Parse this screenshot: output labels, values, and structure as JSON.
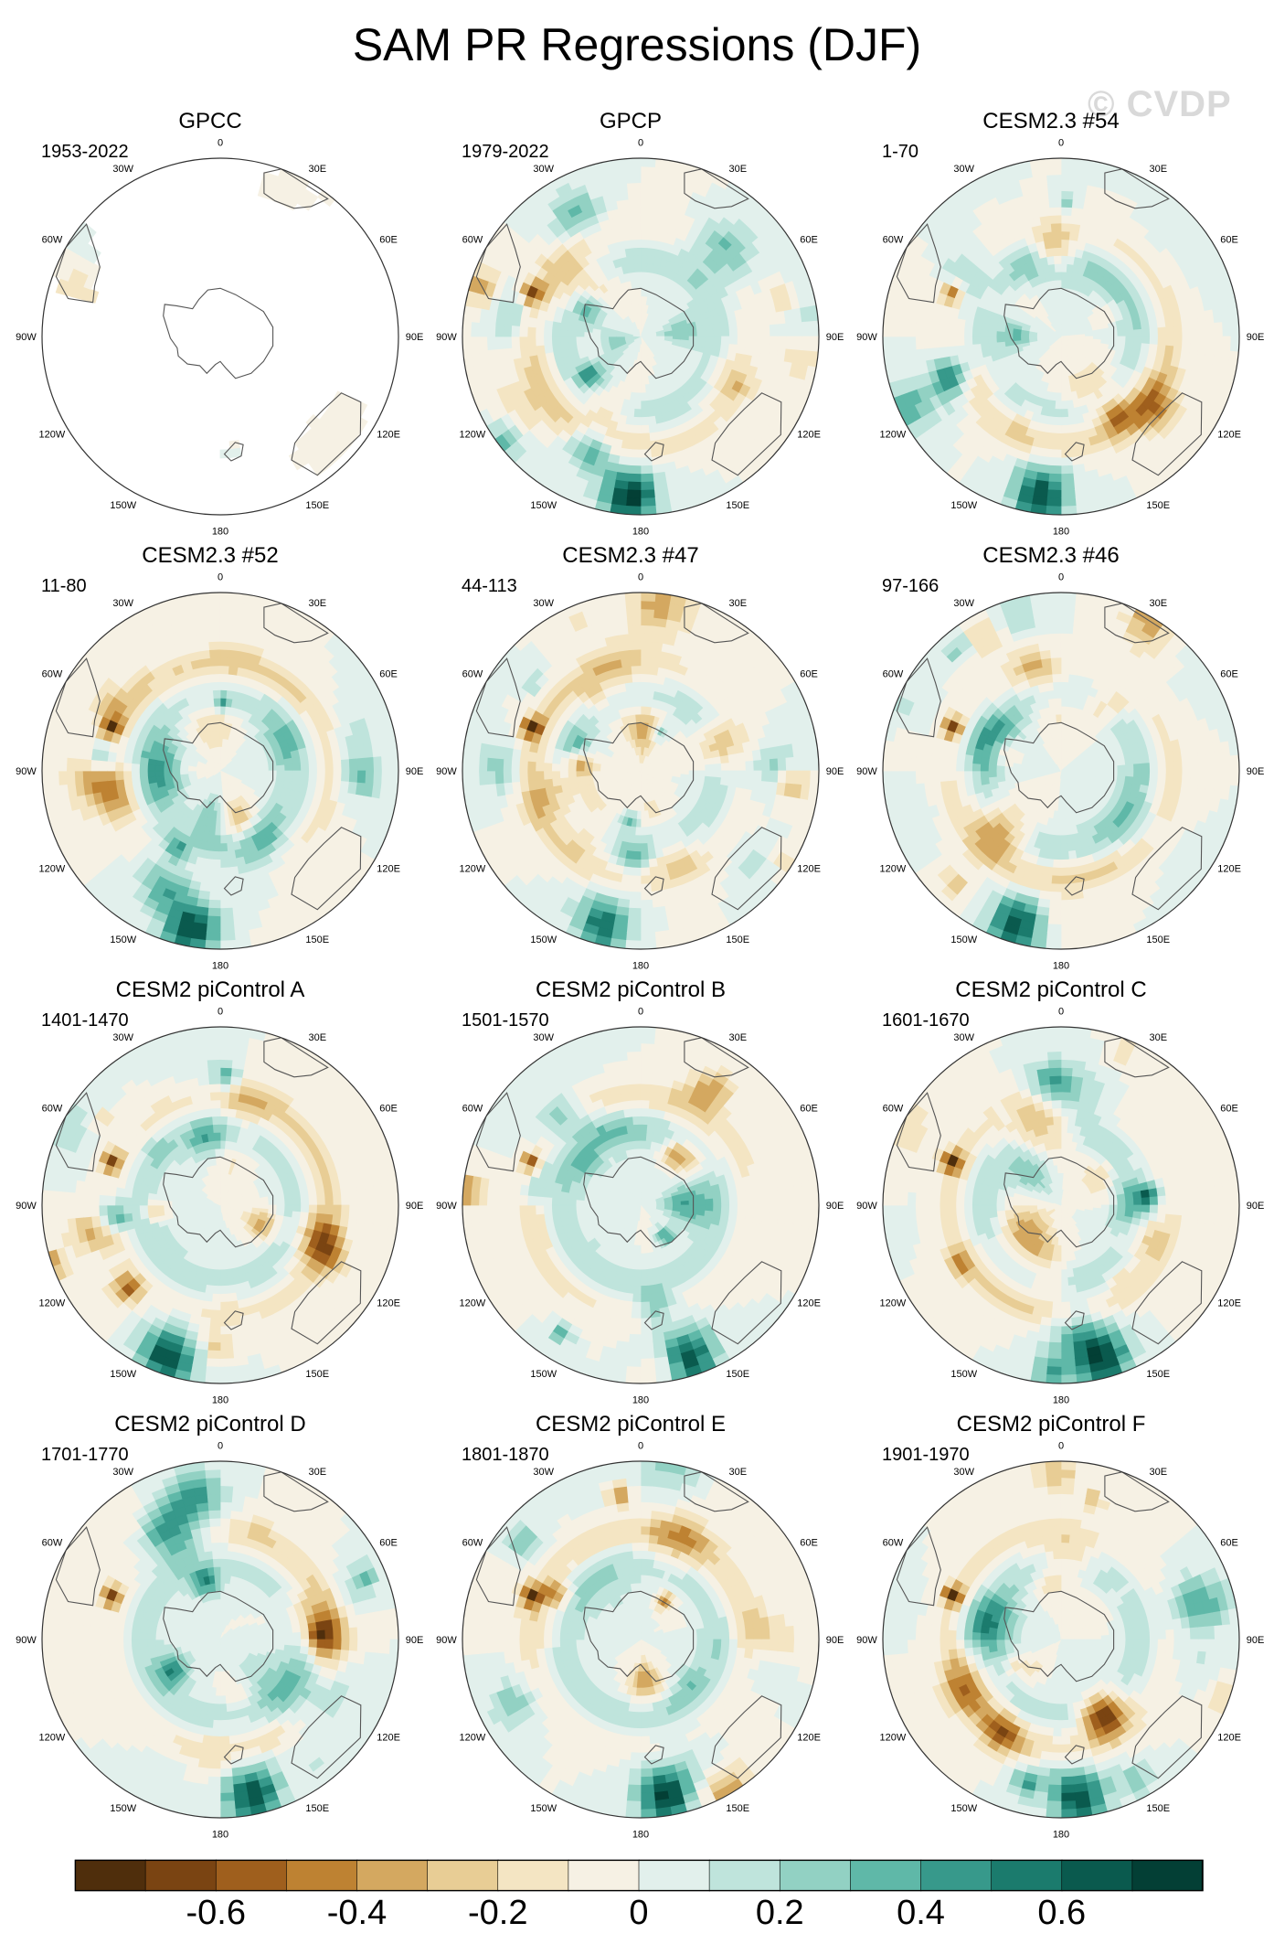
{
  "figure": {
    "title": "SAM PR Regressions (DJF)",
    "watermark": "© CVDP"
  },
  "longitude_labels": [
    "0",
    "30E",
    "60E",
    "90E",
    "120E",
    "150E",
    "180",
    "150W",
    "120W",
    "90W",
    "60W",
    "30W"
  ],
  "panels": [
    {
      "title": "GPCC",
      "period": "1953-2022",
      "data_coverage": "land-only"
    },
    {
      "title": "GPCP",
      "period": "1979-2022",
      "data_coverage": "global"
    },
    {
      "title": "CESM2.3 #54",
      "period": "1-70",
      "data_coverage": "global"
    },
    {
      "title": "CESM2.3 #52",
      "period": "11-80",
      "data_coverage": "global"
    },
    {
      "title": "CESM2.3 #47",
      "period": "44-113",
      "data_coverage": "global"
    },
    {
      "title": "CESM2.3 #46",
      "period": "97-166",
      "data_coverage": "global"
    },
    {
      "title": "CESM2 piControl A",
      "period": "1401-1470",
      "data_coverage": "global"
    },
    {
      "title": "CESM2 piControl B",
      "period": "1501-1570",
      "data_coverage": "global"
    },
    {
      "title": "CESM2 piControl C",
      "period": "1601-1670",
      "data_coverage": "global"
    },
    {
      "title": "CESM2 piControl D",
      "period": "1701-1770",
      "data_coverage": "global"
    },
    {
      "title": "CESM2 piControl E",
      "period": "1801-1870",
      "data_coverage": "global"
    },
    {
      "title": "CESM2 piControl F",
      "period": "1901-1970",
      "data_coverage": "global"
    }
  ],
  "colorbar": {
    "colors": [
      "#4f2e0c",
      "#7a4412",
      "#9f5f1d",
      "#be8232",
      "#d4a860",
      "#e8cd95",
      "#f4e5c3",
      "#f6f1e4",
      "#e2f0ec",
      "#bfe4dc",
      "#92d1c3",
      "#5fb8a8",
      "#37998b",
      "#1b7b6d",
      "#0a5a4e",
      "#033f35"
    ],
    "labels": [
      {
        "text": "-0.6",
        "boundary": 2
      },
      {
        "text": "-0.4",
        "boundary": 4
      },
      {
        "text": "-0.2",
        "boundary": 6
      },
      {
        "text": "0",
        "boundary": 8
      },
      {
        "text": "0.2",
        "boundary": 10
      },
      {
        "text": "0.4",
        "boundary": 12
      },
      {
        "text": "0.6",
        "boundary": 14
      }
    ]
  }
}
